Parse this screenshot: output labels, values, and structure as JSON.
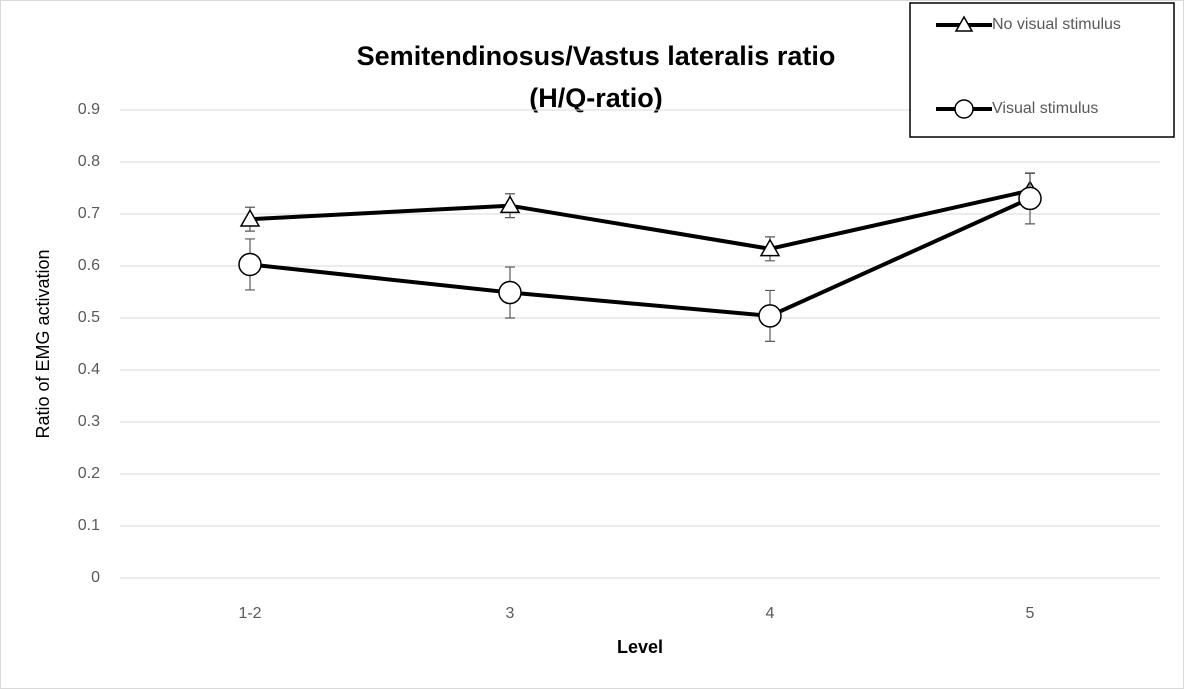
{
  "chart_data": {
    "type": "line",
    "title": [
      "Semitendinosus/Vastus lateralis ratio",
      "(H/Q-ratio)"
    ],
    "x_label": "Level",
    "y_label": "Ratio of EMG activation",
    "categories": [
      "1-2",
      "3",
      "4",
      "5"
    ],
    "series": [
      {
        "name": "No visual stimulus",
        "color": "#000000",
        "marker": "triangle",
        "values": [
          0.69,
          0.716,
          0.633,
          0.745
        ],
        "errors": [
          0.023,
          0.023,
          0.023,
          0.033
        ]
      },
      {
        "name": "Visual stimulus",
        "color": "#000000",
        "marker": "circle",
        "values": [
          0.603,
          0.549,
          0.504,
          0.73
        ],
        "errors": [
          0.049,
          0.049,
          0.049,
          0.049
        ]
      }
    ],
    "ylim": [
      0,
      0.9
    ],
    "yticks": [
      0,
      0.1,
      0.2,
      0.3,
      0.4,
      0.5,
      0.6,
      0.7,
      0.8,
      0.9
    ],
    "grid": true,
    "legend": "top-right"
  }
}
